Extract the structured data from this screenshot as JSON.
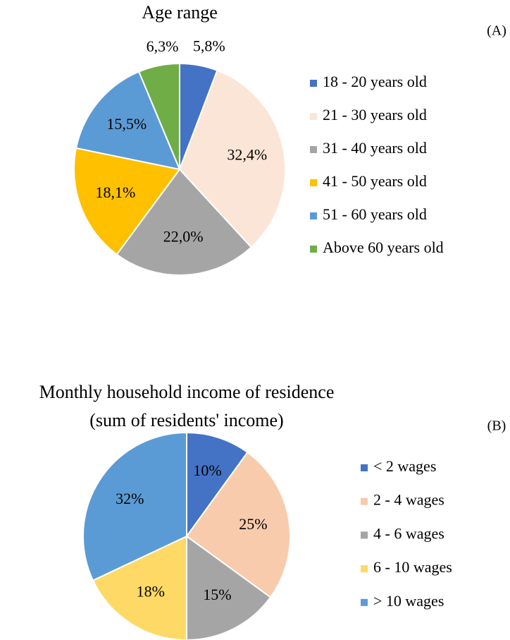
{
  "chart_data": [
    {
      "type": "pie",
      "title": "Age range",
      "panel_label": "(A)",
      "categories": [
        "18 - 20 years old",
        "21 - 30 years old",
        "31 - 40 years old",
        "41 - 50 years old",
        "51 - 60 years old",
        "Above 60 years old"
      ],
      "values": [
        5.8,
        32.4,
        22.0,
        18.1,
        15.5,
        6.3
      ],
      "value_labels": [
        "5,8%",
        "32,4%",
        "22,0%",
        "18,1%",
        "15,5%",
        "6,3%"
      ],
      "colors": [
        "#4472c4",
        "#fbe5d6",
        "#a5a5a5",
        "#ffc000",
        "#5b9bd5",
        "#70ad47"
      ],
      "legend": "right"
    },
    {
      "type": "pie",
      "title": [
        "Monthly household income of residence",
        "(sum of residents' income)"
      ],
      "panel_label": "(B)",
      "categories": [
        "< 2 wages",
        "2 - 4 wages",
        "4 - 6 wages",
        "6 - 10 wages",
        "> 10 wages"
      ],
      "values": [
        10,
        25,
        15,
        18,
        32
      ],
      "value_labels": [
        "10%",
        "25%",
        "15%",
        "18%",
        "32%"
      ],
      "colors": [
        "#4472c4",
        "#f8cbad",
        "#a5a5a5",
        "#ffd966",
        "#5b9bd5"
      ],
      "legend": "right"
    }
  ]
}
